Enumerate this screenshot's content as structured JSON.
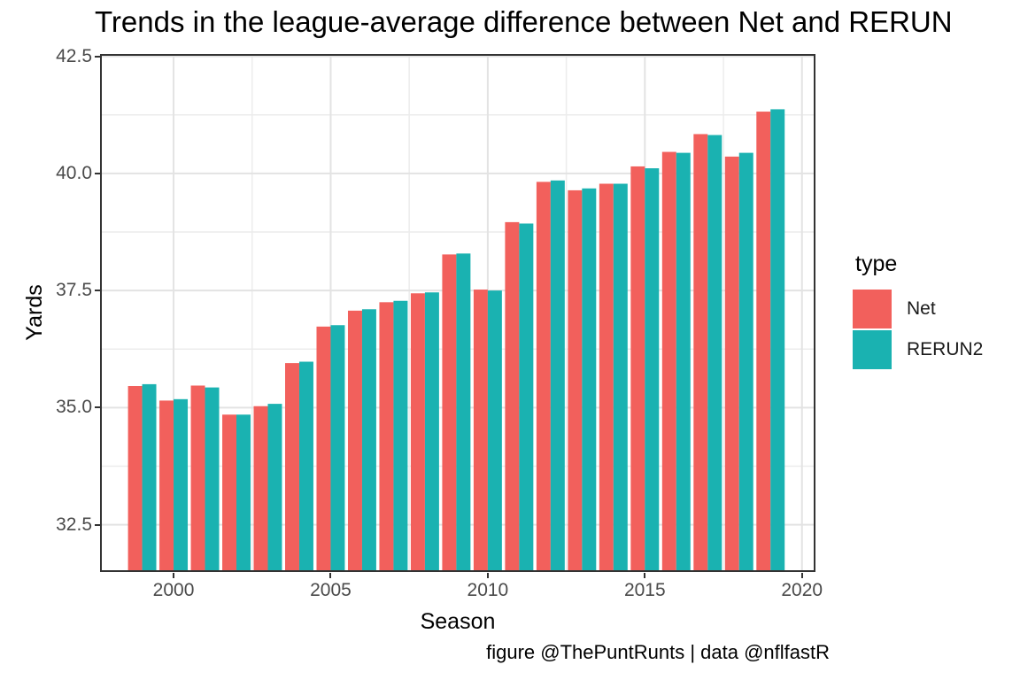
{
  "title": "Trends in the league-average difference between Net and RERUN",
  "caption": "figure @ThePuntRunts | data @nflfastR",
  "x_axis": {
    "label": "Season",
    "tick_labels": [
      "2000",
      "2005",
      "2010",
      "2015",
      "2020"
    ]
  },
  "y_axis": {
    "label": "Yards",
    "tick_labels": [
      "42.5",
      "40.0",
      "37.5",
      "35.0",
      "32.5"
    ]
  },
  "legend": {
    "title": "type",
    "entries": [
      {
        "label": "Net",
        "color": "#F2605C"
      },
      {
        "label": "RERUN2",
        "color": "#1AB2B1"
      }
    ]
  },
  "colors": {
    "net": "#F2605C",
    "rerun2": "#1AB2B1",
    "panel_border": "#333333",
    "grid_major": "#E3E3E3",
    "grid_minor": "#ECECEC",
    "tick_text": "#4a4a4a"
  },
  "chart_data": {
    "type": "bar",
    "title": "Trends in the league-average difference between Net and RERUN",
    "xlabel": "Season",
    "ylabel": "Yards",
    "x": [
      1999,
      2000,
      2001,
      2002,
      2003,
      2004,
      2005,
      2006,
      2007,
      2008,
      2009,
      2010,
      2011,
      2012,
      2013,
      2014,
      2015,
      2016,
      2017,
      2018,
      2019
    ],
    "series": [
      {
        "name": "Net",
        "color": "#F2605C",
        "values": [
          35.46,
          35.15,
          35.47,
          34.85,
          35.03,
          35.95,
          36.73,
          37.07,
          37.25,
          37.44,
          38.27,
          37.52,
          38.96,
          39.82,
          39.64,
          39.78,
          40.15,
          40.46,
          40.84,
          40.36,
          41.32
        ]
      },
      {
        "name": "RERUN2",
        "color": "#1AB2B1",
        "values": [
          35.5,
          35.18,
          35.43,
          34.85,
          35.08,
          35.98,
          36.76,
          37.1,
          37.28,
          37.46,
          38.29,
          37.5,
          38.93,
          39.85,
          39.68,
          39.78,
          40.11,
          40.44,
          40.82,
          40.44,
          41.37
        ]
      }
    ],
    "xlim": [
      1997.66,
      2020.43
    ],
    "ylim": [
      31.49,
      42.55
    ],
    "x_major_ticks": [
      2000,
      2005,
      2010,
      2015,
      2020
    ],
    "x_minor_ticks": [
      1997.5,
      2002.5,
      2007.5,
      2012.5,
      2017.5
    ],
    "y_major_ticks": [
      32.5,
      35.0,
      37.5,
      40.0,
      42.5
    ],
    "y_minor_ticks": [
      33.75,
      36.25,
      38.75,
      41.25
    ],
    "bar_group_width": 0.9,
    "grid": true,
    "legend_position": "right"
  }
}
